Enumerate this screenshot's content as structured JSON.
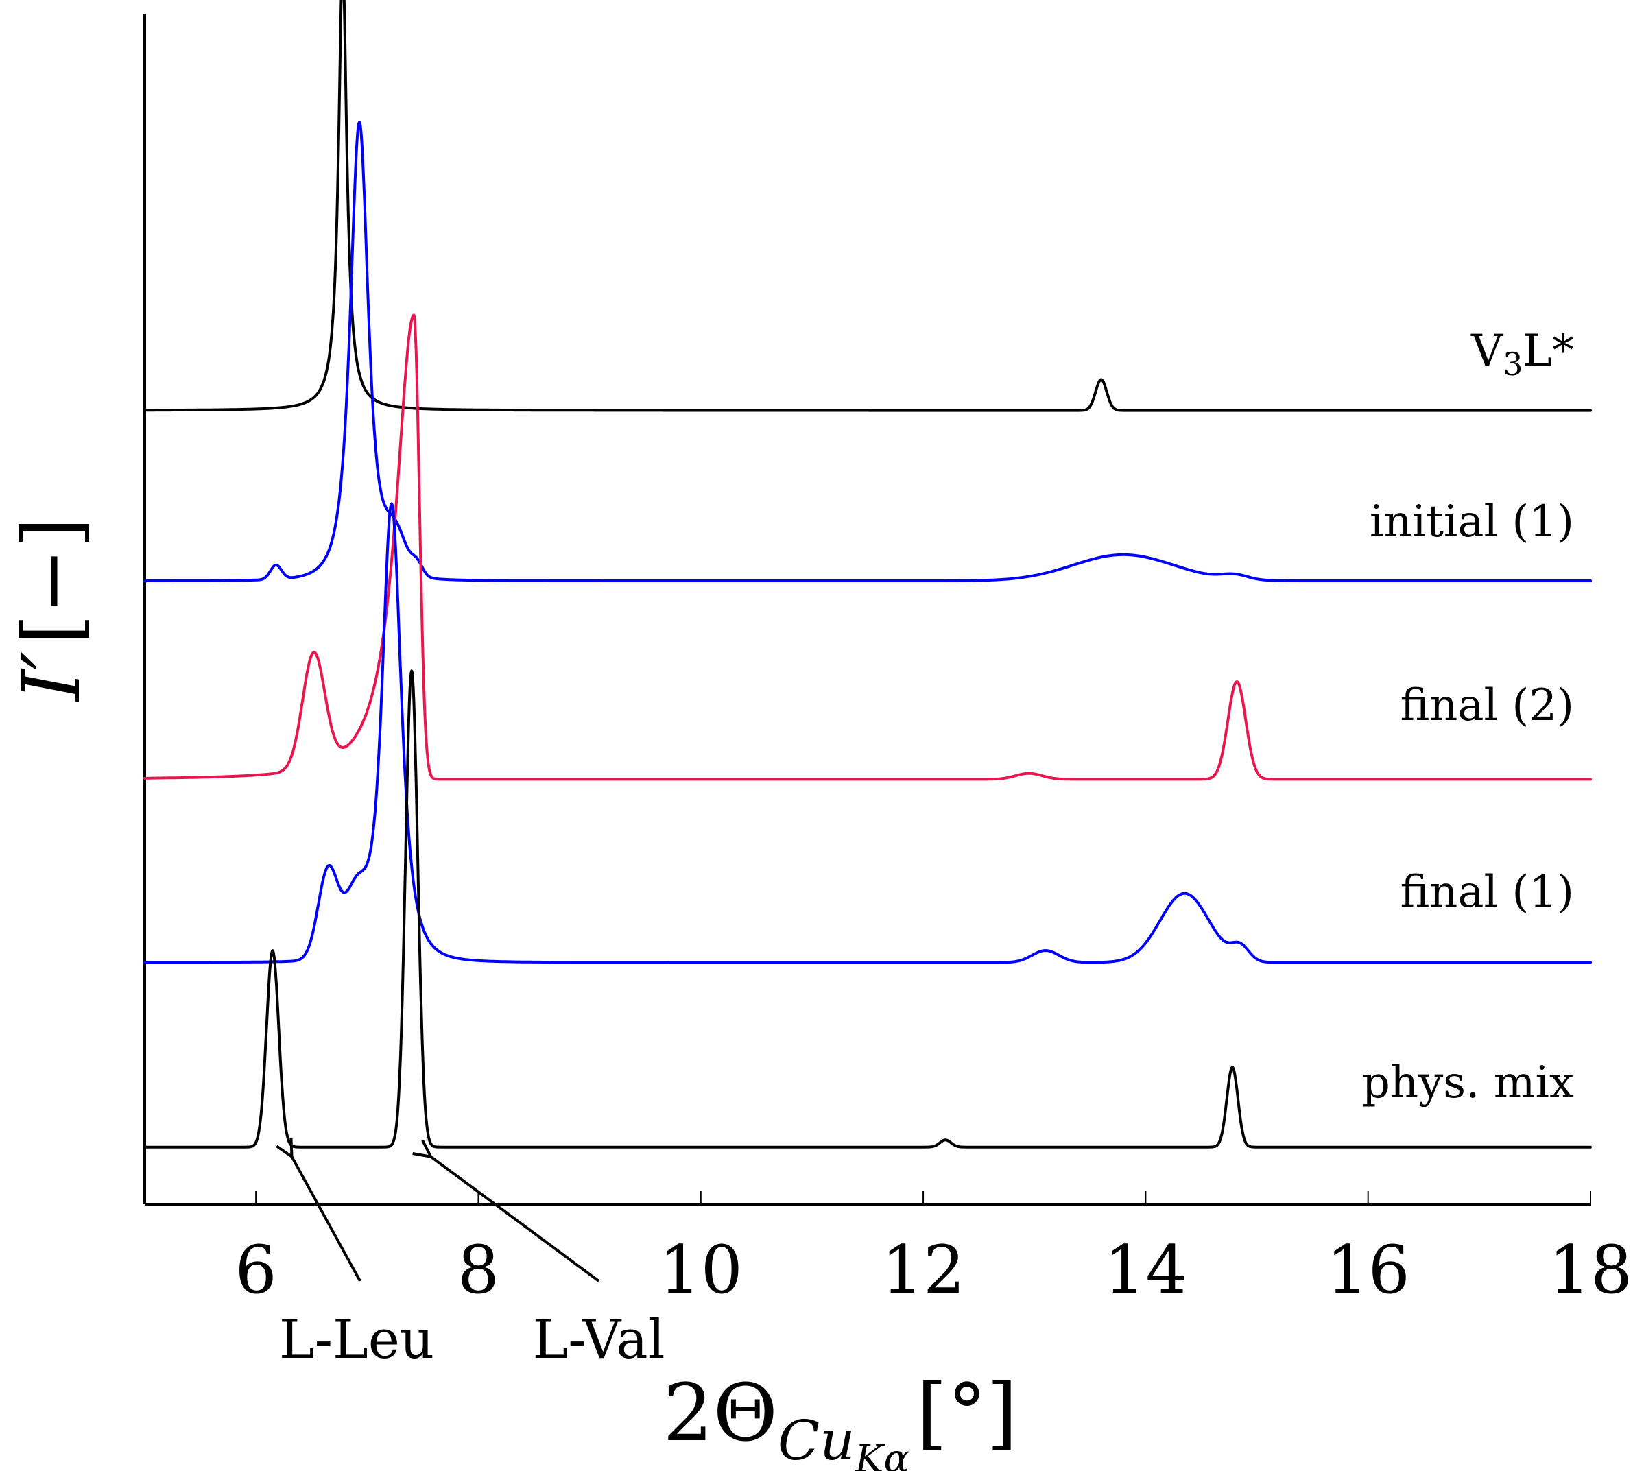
{
  "chart_data": {
    "type": "line",
    "title": "",
    "xlabel": {
      "main": "2Θ",
      "sub": "Cu",
      "subsub": "Kα",
      "unit": "[°]"
    },
    "ylabel": {
      "main": "I′",
      "unit": "[−]"
    },
    "xlim": [
      5,
      18
    ],
    "x_ticks": [
      6,
      8,
      10,
      12,
      14,
      16,
      18
    ],
    "y_ticks": [],
    "grid": false,
    "legend": "none (series labeled directly at right)",
    "series": [
      {
        "name": "V3L*",
        "label_main": "V",
        "label_sub": "3",
        "label_tail": "L*",
        "color": "#000000",
        "baseline": 0.6667,
        "peaks": [
          {
            "x": 6.78,
            "height": 0.375,
            "width": 0.045,
            "shape": "lorentz"
          },
          {
            "x": 13.6,
            "height": 0.026,
            "width": 0.05,
            "shape": "gauss"
          }
        ]
      },
      {
        "name": "initial (1)",
        "color": "#0000ff",
        "baseline": 0.5236,
        "peaks": [
          {
            "x": 6.93,
            "height": 0.385,
            "width": 0.13,
            "shape": "pearson"
          },
          {
            "x": 6.18,
            "height": 0.012,
            "width": 0.05,
            "shape": "gauss"
          },
          {
            "x": 7.25,
            "height": 0.035,
            "width": 0.1,
            "shape": "gauss"
          },
          {
            "x": 7.45,
            "height": 0.01,
            "width": 0.05,
            "shape": "gauss"
          },
          {
            "x": 13.8,
            "height": 0.022,
            "width": 0.45,
            "shape": "gauss"
          },
          {
            "x": 14.8,
            "height": 0.004,
            "width": 0.12,
            "shape": "gauss"
          }
        ]
      },
      {
        "name": "final (2)",
        "color": "#e8174f",
        "baseline": 0.3569,
        "peaks": [
          {
            "x": 7.42,
            "height": 0.39,
            "width": 0.22,
            "shape": "left-tail"
          },
          {
            "x": 6.52,
            "height": 0.096,
            "width": 0.1,
            "shape": "gauss"
          },
          {
            "x": 12.95,
            "height": 0.005,
            "width": 0.12,
            "shape": "gauss"
          },
          {
            "x": 14.82,
            "height": 0.082,
            "width": 0.08,
            "shape": "gauss"
          }
        ]
      },
      {
        "name": "final (1)",
        "color": "#0000ff",
        "baseline": 0.2031,
        "peaks": [
          {
            "x": 7.22,
            "height": 0.385,
            "width": 0.14,
            "shape": "pearson"
          },
          {
            "x": 6.65,
            "height": 0.075,
            "width": 0.09,
            "shape": "gauss"
          },
          {
            "x": 6.9,
            "height": 0.05,
            "width": 0.1,
            "shape": "gauss"
          },
          {
            "x": 13.1,
            "height": 0.01,
            "width": 0.12,
            "shape": "gauss"
          },
          {
            "x": 14.35,
            "height": 0.058,
            "width": 0.22,
            "shape": "gauss"
          },
          {
            "x": 14.85,
            "height": 0.012,
            "width": 0.08,
            "shape": "gauss"
          }
        ]
      },
      {
        "name": "phys. mix",
        "color": "#000000",
        "baseline": 0.048,
        "peaks": [
          {
            "x": 6.15,
            "height": 0.165,
            "width": 0.055,
            "shape": "gauss"
          },
          {
            "x": 7.4,
            "height": 0.4,
            "width": 0.055,
            "shape": "gauss"
          },
          {
            "x": 12.2,
            "height": 0.006,
            "width": 0.05,
            "shape": "gauss"
          },
          {
            "x": 14.78,
            "height": 0.067,
            "width": 0.05,
            "shape": "gauss"
          }
        ]
      }
    ],
    "annotations": [
      {
        "text": "L-Leu",
        "points_to_x": 6.15,
        "series": "phys. mix"
      },
      {
        "text": "L-Val",
        "points_to_x": 7.4,
        "series": "phys. mix"
      }
    ]
  }
}
